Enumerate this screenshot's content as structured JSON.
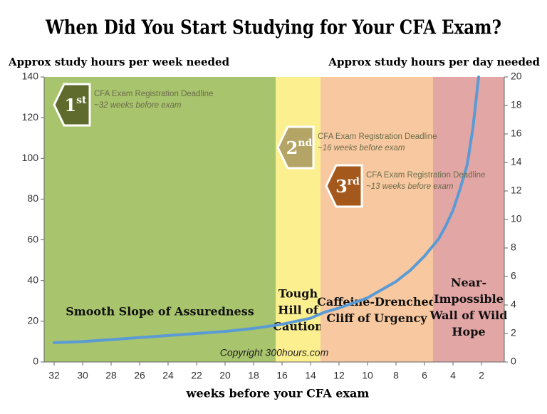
{
  "chart_data": {
    "type": "line",
    "title": "When Did You Start Studying for Your CFA Exam?",
    "y_label": "Approx study hours per week needed",
    "y2_label": "Approx study hours per day needed",
    "x_label": "weeks before your CFA exam",
    "xlim": [
      32.7,
      0.4
    ],
    "xticks": [
      32,
      30,
      28,
      26,
      24,
      22,
      20,
      18,
      16,
      14,
      12,
      10,
      8,
      6,
      4,
      2
    ],
    "ylim": [
      0,
      140
    ],
    "yticks": [
      0,
      20,
      40,
      60,
      80,
      100,
      120,
      140
    ],
    "y2lim": [
      0,
      20
    ],
    "y2ticks": [
      0,
      2,
      4,
      6,
      8,
      10,
      12,
      14,
      16,
      18,
      20
    ],
    "regions": [
      {
        "start": 32.7,
        "end": 16.45,
        "color": "#a8c46c",
        "label": [
          "Smooth Slope of Assuredness"
        ]
      },
      {
        "start": 16.45,
        "end": 13.3,
        "color": "#fcef90",
        "label": [
          "Tough",
          "Hill of",
          "Caution"
        ]
      },
      {
        "start": 13.3,
        "end": 5.4,
        "color": "#f8c9a0",
        "label": [
          "Caffeine-Drenched",
          "Cliff of Urgency"
        ]
      },
      {
        "start": 5.4,
        "end": 0.4,
        "color": "#e2a6a5",
        "label": [
          "Near-",
          "Impossible",
          "Wall of Wild",
          "Hope"
        ]
      }
    ],
    "series": [
      {
        "color": "#5b9bd5",
        "x": [
          32,
          30,
          28,
          26,
          24,
          22,
          20,
          18,
          16,
          14,
          13,
          12,
          10,
          8,
          7,
          6,
          5,
          4.5,
          4,
          3.5,
          3,
          2.6,
          2.2
        ],
        "values": [
          9.5,
          10,
          11,
          12,
          13,
          14,
          15,
          16.5,
          18.5,
          21.5,
          24.5,
          26.5,
          31.5,
          39.5,
          45,
          52,
          60.5,
          67,
          74.5,
          85,
          97,
          115,
          140
        ]
      }
    ],
    "annotations": [
      {
        "ordinal": "1",
        "suffix": "st",
        "color": "#5f6b2c",
        "text": "CFA Exam Registration Deadline",
        "subtext": "~32 weeks before exam"
      },
      {
        "ordinal": "2",
        "suffix": "nd",
        "color": "#b4a466",
        "text": "CFA Exam Registration Deadline",
        "subtext": "~16 weeks before exam"
      },
      {
        "ordinal": "3",
        "suffix": "rd",
        "color": "#a4581c",
        "text": "CFA Exam Registration Deadline",
        "subtext": "~13 weeks before exam"
      }
    ],
    "credit": "Copyright 300hours.com"
  }
}
